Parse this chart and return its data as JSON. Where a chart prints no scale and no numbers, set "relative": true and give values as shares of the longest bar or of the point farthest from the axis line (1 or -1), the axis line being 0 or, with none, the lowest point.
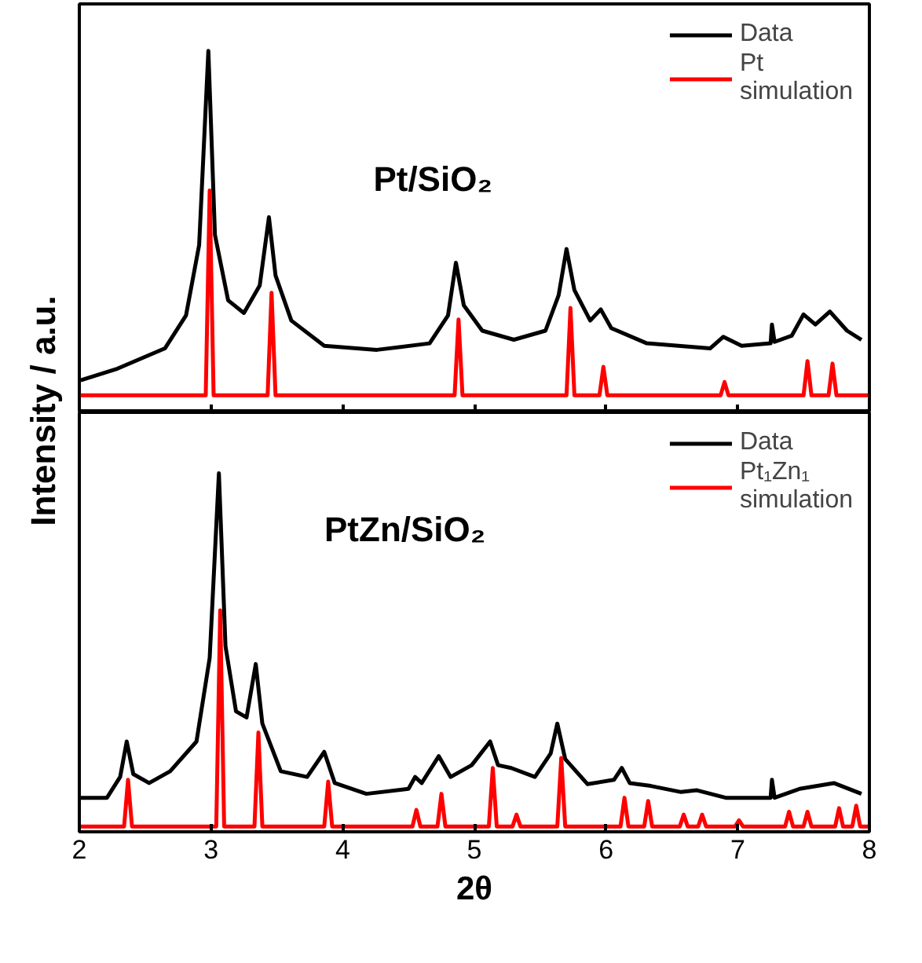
{
  "chart_data": [
    {
      "type": "line",
      "relative": true,
      "xlim": [
        2,
        8
      ],
      "xticks": [
        2,
        3,
        4,
        5,
        6,
        7,
        8
      ],
      "tick_labels": false,
      "ylabel": "Intensity / a.u.",
      "legend": "top right",
      "annotations": [
        "Pt/SiO₂"
      ],
      "series": [
        {
          "name": "Data",
          "color": "#000000",
          "x": [
            2.01,
            2.29,
            2.65,
            2.81,
            2.91,
            2.98,
            3.03,
            3.13,
            3.25,
            3.37,
            3.44,
            3.49,
            3.61,
            3.86,
            4.26,
            4.66,
            4.8,
            4.86,
            4.92,
            5.06,
            5.3,
            5.54,
            5.64,
            5.7,
            5.76,
            5.88,
            5.96,
            6.04,
            6.31,
            6.79,
            6.89,
            7.03,
            7.25,
            7.26,
            7.28,
            7.41,
            7.5,
            7.59,
            7.7,
            7.83,
            7.94
          ],
          "values": [
            0.089,
            0.121,
            0.177,
            0.268,
            0.463,
            1.0,
            0.491,
            0.31,
            0.275,
            0.351,
            0.54,
            0.379,
            0.254,
            0.184,
            0.173,
            0.191,
            0.268,
            0.414,
            0.296,
            0.226,
            0.201,
            0.226,
            0.324,
            0.452,
            0.338,
            0.254,
            0.285,
            0.233,
            0.191,
            0.177,
            0.209,
            0.184,
            0.191,
            0.243,
            0.195,
            0.212,
            0.271,
            0.243,
            0.279,
            0.226,
            0.201
          ]
        },
        {
          "name": "Pt simulation",
          "color": "#ff0000",
          "x": [
            2.01,
            2.96,
            2.99,
            3.02,
            3.43,
            3.46,
            3.49,
            4.85,
            4.88,
            4.91,
            5.7,
            5.73,
            5.76,
            5.95,
            5.98,
            6.01,
            6.87,
            6.9,
            6.93,
            7.5,
            7.53,
            7.56,
            7.69,
            7.72,
            7.75,
            7.99
          ],
          "values": [
            0.047,
            0.047,
            0.614,
            0.047,
            0.047,
            0.331,
            0.047,
            0.047,
            0.257,
            0.047,
            0.047,
            0.289,
            0.047,
            0.047,
            0.126,
            0.047,
            0.047,
            0.084,
            0.047,
            0.047,
            0.142,
            0.047,
            0.047,
            0.135,
            0.047,
            0.047
          ]
        }
      ]
    },
    {
      "type": "line",
      "relative": true,
      "xlim": [
        2,
        8
      ],
      "xticks": [
        2,
        3,
        4,
        5,
        6,
        7,
        8
      ],
      "tick_labels": "x",
      "xlabel": "2θ",
      "legend": "top right",
      "annotations": [
        "PtZn/SiO₂"
      ],
      "series": [
        {
          "name": "Data",
          "color": "#000000",
          "x": [
            2.01,
            2.21,
            2.31,
            2.36,
            2.41,
            2.53,
            2.69,
            2.89,
            2.99,
            3.06,
            3.11,
            3.19,
            3.27,
            3.34,
            3.39,
            3.53,
            3.73,
            3.86,
            3.94,
            4.18,
            4.5,
            4.55,
            4.6,
            4.73,
            4.82,
            4.98,
            5.12,
            5.18,
            5.28,
            5.46,
            5.58,
            5.63,
            5.69,
            5.86,
            6.06,
            6.12,
            6.18,
            6.34,
            6.57,
            6.69,
            6.91,
            7.25,
            7.26,
            7.28,
            7.47,
            7.73,
            7.94
          ],
          "values": [
            0.095,
            0.095,
            0.153,
            0.252,
            0.161,
            0.136,
            0.169,
            0.252,
            0.485,
            1.0,
            0.518,
            0.336,
            0.319,
            0.468,
            0.302,
            0.169,
            0.153,
            0.223,
            0.136,
            0.106,
            0.12,
            0.153,
            0.136,
            0.211,
            0.153,
            0.186,
            0.252,
            0.186,
            0.178,
            0.153,
            0.219,
            0.302,
            0.203,
            0.133,
            0.145,
            0.178,
            0.136,
            0.128,
            0.111,
            0.116,
            0.095,
            0.095,
            0.145,
            0.095,
            0.12,
            0.136,
            0.106
          ]
        },
        {
          "name": "Pt₁Zn₁ simulation",
          "color": "#ff0000",
          "x": [
            2.01,
            2.34,
            2.37,
            2.4,
            3.04,
            3.07,
            3.1,
            3.33,
            3.36,
            3.39,
            3.86,
            3.89,
            3.92,
            4.53,
            4.56,
            4.59,
            4.72,
            4.75,
            4.78,
            5.11,
            5.14,
            5.17,
            5.29,
            5.32,
            5.35,
            5.63,
            5.66,
            5.69,
            6.11,
            6.14,
            6.17,
            6.29,
            6.32,
            6.35,
            6.56,
            6.59,
            6.62,
            6.7,
            6.73,
            6.76,
            6.98,
            7.01,
            7.04,
            7.36,
            7.39,
            7.42,
            7.5,
            7.53,
            7.56,
            7.74,
            7.77,
            7.8,
            7.87,
            7.9,
            7.93,
            7.99
          ],
          "values": [
            0.015,
            0.015,
            0.145,
            0.015,
            0.015,
            0.618,
            0.015,
            0.015,
            0.277,
            0.015,
            0.015,
            0.14,
            0.015,
            0.015,
            0.061,
            0.015,
            0.015,
            0.106,
            0.015,
            0.015,
            0.178,
            0.015,
            0.015,
            0.048,
            0.015,
            0.015,
            0.206,
            0.015,
            0.015,
            0.095,
            0.015,
            0.015,
            0.086,
            0.015,
            0.015,
            0.048,
            0.015,
            0.015,
            0.048,
            0.015,
            0.015,
            0.032,
            0.015,
            0.015,
            0.056,
            0.015,
            0.015,
            0.056,
            0.015,
            0.015,
            0.066,
            0.015,
            0.015,
            0.073,
            0.015,
            0.015
          ]
        }
      ]
    }
  ]
}
